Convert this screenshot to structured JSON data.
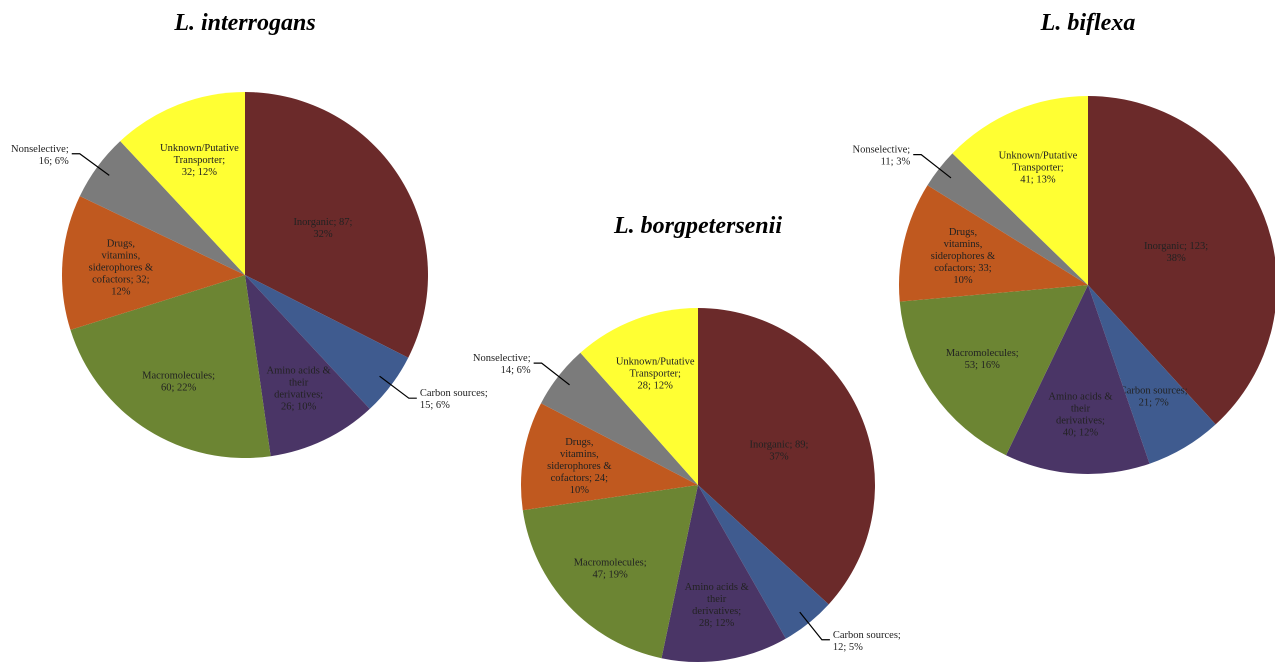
{
  "chart_data": [
    {
      "type": "pie",
      "title": "L. interrogans",
      "values": [
        87,
        15,
        26,
        60,
        32,
        16,
        32
      ],
      "value_labels": [
        "Inorganic; 87; 32%",
        "Carbon sources; 15; 6%",
        "Amino acids & their derivatives; 26; 10%",
        "Macromolecules; 60; 22%",
        "Drugs, vitamins, siderophores & cofactors; 32; 12%",
        "Nonselective; 16; 6%",
        "Unknown/Putative Transporter; 32; 12%"
      ],
      "colors": [
        "#6b2a2a",
        "#3f5b8f",
        "#4a3566",
        "#6c8533",
        "#c0591f",
        "#7b7b7b",
        "#ffff33"
      ]
    },
    {
      "type": "pie",
      "title": "L. borgpetersenii",
      "values": [
        89,
        12,
        28,
        47,
        24,
        14,
        28
      ],
      "value_labels": [
        "Inorganic; 89; 37%",
        "Carbon sources; 12; 5%",
        "Amino acids & their derivatives; 28; 12%",
        "Macromolecules; 47; 19%",
        "Drugs, vitamins, siderophores & cofactors; 24; 10%",
        "Nonselective; 14; 6%",
        "Unknown/Putative Transporter; 28; 12%"
      ],
      "colors": [
        "#6b2a2a",
        "#3f5b8f",
        "#4a3566",
        "#6c8533",
        "#c0591f",
        "#7b7b7b",
        "#ffff33"
      ]
    },
    {
      "type": "pie",
      "title": "L. biflexa",
      "values": [
        123,
        21,
        40,
        53,
        33,
        11,
        41
      ],
      "value_labels": [
        "Inorganic; 123; 38%",
        "Carbon sources; 21; 7%",
        "Amino acids & their derivatives; 40; 12%",
        "Macromolecules; 53; 16%",
        "Drugs, vitamins, siderophores & cofactors; 33; 10%",
        "Nonselective; 11; 3%",
        "Unknown/Putative Transporter; 41; 13%"
      ],
      "colors": [
        "#6b2a2a",
        "#3f5b8f",
        "#4a3566",
        "#6c8533",
        "#c0591f",
        "#7b7b7b",
        "#ffff33"
      ]
    }
  ]
}
